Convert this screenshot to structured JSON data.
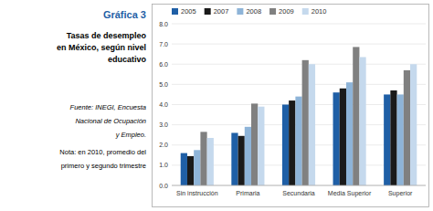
{
  "chart_data": {
    "type": "bar",
    "title": "Gráfica 3",
    "subtitle": "Tasas de desempleo\nen México, según nivel\neducativo",
    "annotations": [
      "Fuente: INEGI, Encuesta",
      "Nacional de Ocupación",
      "y Empleo.",
      "Nota: en 2010, promedio del",
      "primero y segundo trimestre"
    ],
    "categories": [
      "Sin instrucción",
      "Primaria",
      "Secundaria",
      "Media Superior",
      "Superior"
    ],
    "series": [
      {
        "name": "2005",
        "color": "#1F5FA6",
        "values": [
          1.6,
          2.6,
          4.0,
          4.6,
          4.5
        ]
      },
      {
        "name": "2007",
        "color": "#1A1A1A",
        "values": [
          1.45,
          2.45,
          4.2,
          4.8,
          4.7
        ]
      },
      {
        "name": "2008",
        "color": "#8EB4D8",
        "values": [
          1.75,
          2.9,
          4.4,
          5.1,
          4.5
        ]
      },
      {
        "name": "2009",
        "color": "#808080",
        "values": [
          2.65,
          4.05,
          6.2,
          6.85,
          5.7
        ]
      },
      {
        "name": "2010",
        "color": "#C5D9ED",
        "values": [
          2.35,
          3.9,
          6.0,
          6.35,
          6.0
        ]
      }
    ],
    "ylim": [
      0,
      8.0
    ],
    "yticks": [
      {
        "value": 0.0,
        "label": "0.0"
      },
      {
        "value": 1.0,
        "label": "1.0"
      },
      {
        "value": 2.0,
        "label": "2.0"
      },
      {
        "value": 3.0,
        "label": "3.0"
      },
      {
        "value": 4.0,
        "label": "4.0"
      },
      {
        "value": 5.0,
        "label": "5.0"
      },
      {
        "value": 6.0,
        "label": "6.0"
      },
      {
        "value": 7.0,
        "label": "7.0"
      },
      {
        "value": 8.0,
        "label": "8.0"
      }
    ],
    "grid": true,
    "legend": "top-left"
  }
}
